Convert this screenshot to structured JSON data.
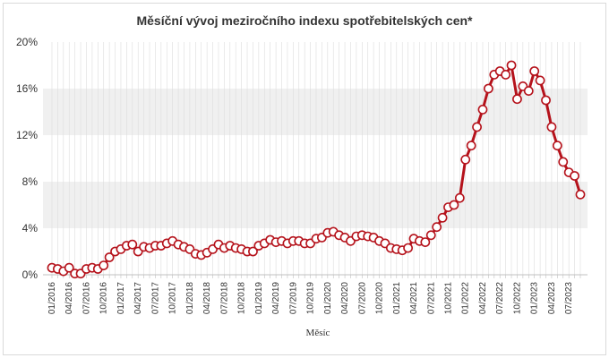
{
  "chart_data": {
    "type": "line",
    "title": "Měsíční vývoj meziročního indexu spotřebitelských cen*",
    "xlabel": "Měsíc",
    "ylabel": "",
    "ylim": [
      0,
      20
    ],
    "y_ticks": [
      "0%",
      "4%",
      "8%",
      "12%",
      "16%",
      "20%"
    ],
    "x_tick_labels": [
      "01/2016",
      "04/2016",
      "07/2016",
      "10/2016",
      "01/2017",
      "04/2017",
      "07/2017",
      "10/2017",
      "01/2018",
      "04/2018",
      "07/2018",
      "10/2018",
      "01/2019",
      "04/2019",
      "07/2019",
      "10/2019",
      "01/2020",
      "04/2020",
      "07/2020",
      "10/2020",
      "01/2021",
      "04/2021",
      "07/2021",
      "10/2021",
      "01/2022",
      "04/2022",
      "07/2022",
      "10/2022",
      "01/2023",
      "04/2023",
      "07/2023"
    ],
    "grid": true,
    "bands": [
      [
        4,
        8
      ],
      [
        12,
        16
      ]
    ],
    "colors": {
      "line": "#b5121b",
      "marker_fill": "#ffffff",
      "band": "#f0f0f0",
      "grid": "#dddddd"
    },
    "x": [
      "01/2016",
      "02/2016",
      "03/2016",
      "04/2016",
      "05/2016",
      "06/2016",
      "07/2016",
      "08/2016",
      "09/2016",
      "10/2016",
      "11/2016",
      "12/2016",
      "01/2017",
      "02/2017",
      "03/2017",
      "04/2017",
      "05/2017",
      "06/2017",
      "07/2017",
      "08/2017",
      "09/2017",
      "10/2017",
      "11/2017",
      "12/2017",
      "01/2018",
      "02/2018",
      "03/2018",
      "04/2018",
      "05/2018",
      "06/2018",
      "07/2018",
      "08/2018",
      "09/2018",
      "10/2018",
      "11/2018",
      "12/2018",
      "01/2019",
      "02/2019",
      "03/2019",
      "04/2019",
      "05/2019",
      "06/2019",
      "07/2019",
      "08/2019",
      "09/2019",
      "10/2019",
      "11/2019",
      "12/2019",
      "01/2020",
      "02/2020",
      "03/2020",
      "04/2020",
      "05/2020",
      "06/2020",
      "07/2020",
      "08/2020",
      "09/2020",
      "10/2020",
      "11/2020",
      "12/2020",
      "01/2021",
      "02/2021",
      "03/2021",
      "04/2021",
      "05/2021",
      "06/2021",
      "07/2021",
      "08/2021",
      "09/2021",
      "10/2021",
      "11/2021",
      "12/2021",
      "01/2022",
      "02/2022",
      "03/2022",
      "04/2022",
      "05/2022",
      "06/2022",
      "07/2022",
      "08/2022",
      "09/2022",
      "10/2022",
      "11/2022",
      "12/2022",
      "01/2023",
      "02/2023",
      "03/2023",
      "04/2023",
      "05/2023",
      "06/2023",
      "07/2023",
      "08/2023",
      "09/2023"
    ],
    "series": [
      {
        "values": [
          0.6,
          0.5,
          0.3,
          0.6,
          0.1,
          0.1,
          0.5,
          0.6,
          0.5,
          0.8,
          1.5,
          2.0,
          2.2,
          2.5,
          2.6,
          2.0,
          2.4,
          2.3,
          2.5,
          2.5,
          2.7,
          2.9,
          2.6,
          2.4,
          2.2,
          1.8,
          1.7,
          1.9,
          2.2,
          2.6,
          2.3,
          2.5,
          2.3,
          2.2,
          2.0,
          2.0,
          2.5,
          2.7,
          3.0,
          2.8,
          2.9,
          2.7,
          2.9,
          2.9,
          2.7,
          2.7,
          3.1,
          3.2,
          3.6,
          3.7,
          3.4,
          3.2,
          2.9,
          3.3,
          3.4,
          3.3,
          3.2,
          2.9,
          2.7,
          2.3,
          2.2,
          2.1,
          2.3,
          3.1,
          2.9,
          2.8,
          3.4,
          4.1,
          4.9,
          5.8,
          6.0,
          6.6,
          9.9,
          11.1,
          12.7,
          14.2,
          16.0,
          17.2,
          17.5,
          17.2,
          18.0,
          15.1,
          16.2,
          15.8,
          17.5,
          16.7,
          15.0,
          12.7,
          11.1,
          9.7,
          8.8,
          8.5,
          6.9
        ]
      }
    ]
  }
}
